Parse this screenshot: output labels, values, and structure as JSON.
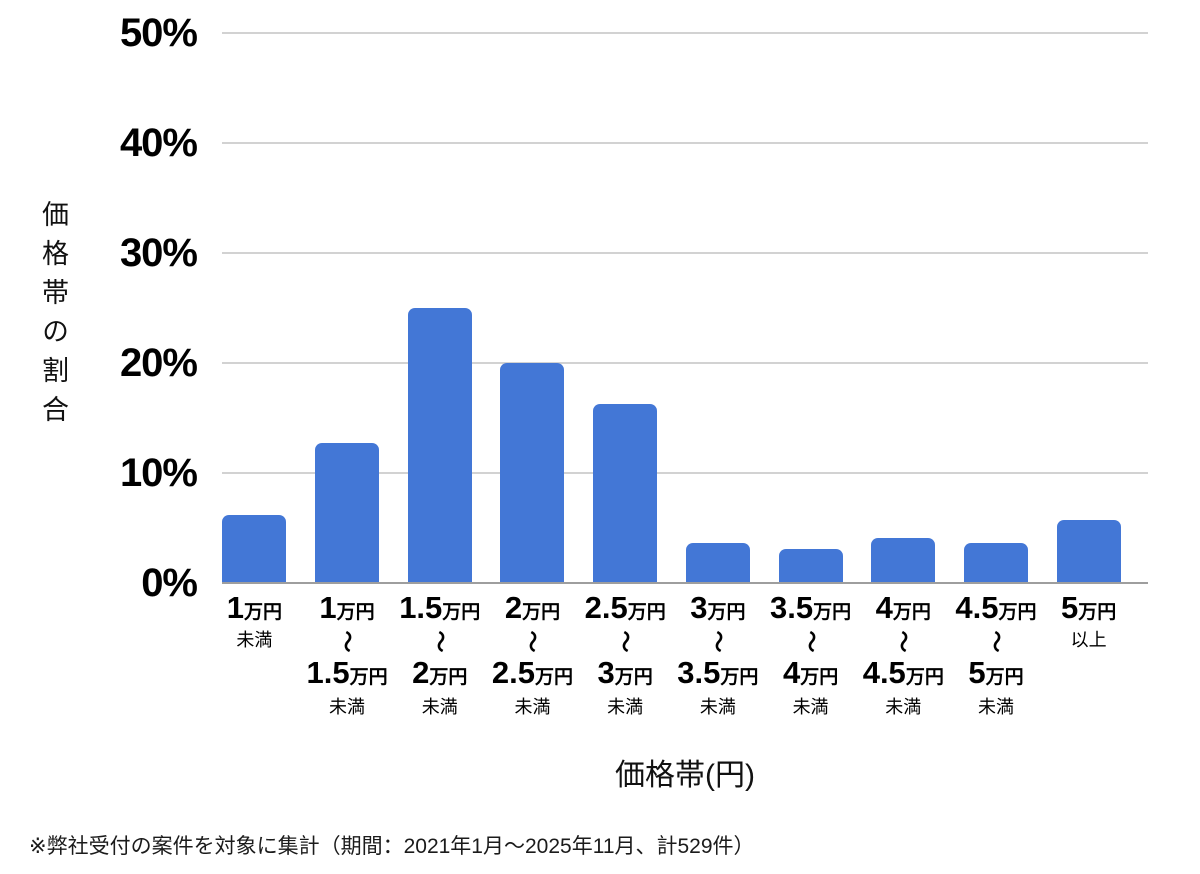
{
  "chart_data": {
    "type": "bar",
    "title": "",
    "ylabel": "価格帯の割合",
    "xlabel": "価格帯(円)",
    "ylim": [
      0,
      50
    ],
    "ytick_labels": [
      "0%",
      "10%",
      "20%",
      "30%",
      "40%",
      "50%"
    ],
    "grid": true,
    "legend": false,
    "bar_color": "#4377d6",
    "categories_text": [
      "1万円未満",
      "1万円〜1.5万円未満",
      "1.5万円〜2万円未満",
      "2万円〜2.5万円未満",
      "2.5万円〜3万円未満",
      "3万円〜3.5万円未満",
      "3.5万円〜4万円未満",
      "4万円〜4.5万円未満",
      "4.5万円〜5万円未満",
      "5万円以上"
    ],
    "categories": [
      {
        "from": "1",
        "from_unit": "万円",
        "tilde": "",
        "to": "",
        "to_unit": "",
        "qualifier": "未満"
      },
      {
        "from": "1",
        "from_unit": "万円",
        "tilde": "〜",
        "to": "1.5",
        "to_unit": "万円",
        "qualifier": "未満"
      },
      {
        "from": "1.5",
        "from_unit": "万円",
        "tilde": "〜",
        "to": "2",
        "to_unit": "万円",
        "qualifier": "未満"
      },
      {
        "from": "2",
        "from_unit": "万円",
        "tilde": "〜",
        "to": "2.5",
        "to_unit": "万円",
        "qualifier": "未満"
      },
      {
        "from": "2.5",
        "from_unit": "万円",
        "tilde": "〜",
        "to": "3",
        "to_unit": "万円",
        "qualifier": "未満"
      },
      {
        "from": "3",
        "from_unit": "万円",
        "tilde": "〜",
        "to": "3.5",
        "to_unit": "万円",
        "qualifier": "未満"
      },
      {
        "from": "3.5",
        "from_unit": "万円",
        "tilde": "〜",
        "to": "4",
        "to_unit": "万円",
        "qualifier": "未満"
      },
      {
        "from": "4",
        "from_unit": "万円",
        "tilde": "〜",
        "to": "4.5",
        "to_unit": "万円",
        "qualifier": "未満"
      },
      {
        "from": "4.5",
        "from_unit": "万円",
        "tilde": "〜",
        "to": "5",
        "to_unit": "万円",
        "qualifier": "未満"
      },
      {
        "from": "5",
        "from_unit": "万円",
        "tilde": "",
        "to": "",
        "to_unit": "",
        "qualifier": "以上"
      }
    ],
    "values": [
      6.2,
      12.7,
      25.0,
      20.0,
      16.3,
      3.6,
      3.1,
      4.1,
      3.6,
      5.7
    ],
    "footnote": "※弊社受付の案件を対象に集計（期間：2021年1月〜2025年11月、計529件）"
  }
}
